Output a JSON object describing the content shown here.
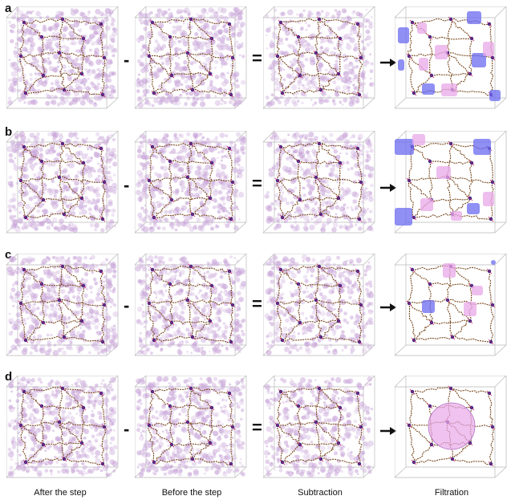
{
  "rows": [
    {
      "label": "a",
      "minus": "-",
      "equals": "="
    },
    {
      "label": "b",
      "minus": "-",
      "equals": "="
    },
    {
      "label": "c",
      "minus": "-",
      "equals": "="
    },
    {
      "label": "d",
      "minus": "-",
      "equals": "="
    }
  ],
  "columns": [
    {
      "label": "After the step"
    },
    {
      "label": "Before the step"
    },
    {
      "label": "Subtraction"
    },
    {
      "label": "Filtration"
    }
  ],
  "colors": {
    "cloud": "#c9a6d9",
    "framework": "#7a4a1f",
    "node": "#3a2a8a",
    "pore_pink": "#e8a8e8",
    "pore_blue": "#6a6af0",
    "box_edge": "#b8b8b8"
  }
}
